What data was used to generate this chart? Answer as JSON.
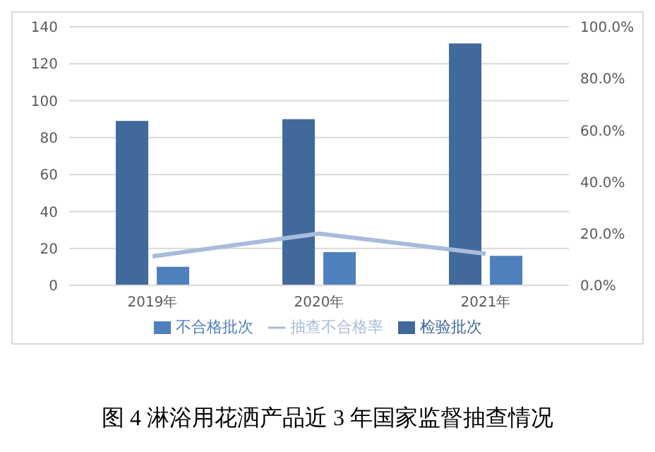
{
  "chart_data": {
    "type": "bar",
    "title": "图 4  淋浴用花洒产品近 3 年国家监督抽查情况",
    "categories": [
      "2019年",
      "2020年",
      "2021年"
    ],
    "series": [
      {
        "name": "检验批次",
        "color": "#41699b",
        "values": [
          89,
          90,
          131
        ]
      },
      {
        "name": "不合格批次",
        "color": "#4e80bd",
        "values": [
          10,
          18,
          16
        ]
      },
      {
        "name": "抽查不合格率",
        "type": "line",
        "axis": "y2",
        "color": "#a9bbdb",
        "values": [
          11.2,
          20.0,
          12.2
        ]
      }
    ],
    "ylim": [
      0,
      140
    ],
    "yticks": [
      0,
      20,
      40,
      60,
      80,
      100,
      120,
      140
    ],
    "y2lim": [
      0,
      100
    ],
    "y2ticks": [
      {
        "value": 0,
        "label": "0.0%"
      },
      {
        "value": 20,
        "label": "20.0%"
      },
      {
        "value": 40,
        "label": "40.0%"
      },
      {
        "value": 60,
        "label": "60.0%"
      },
      {
        "value": 80,
        "label": "80.0%"
      },
      {
        "value": 100,
        "label": "100.0%"
      }
    ],
    "grid": "y",
    "legend": "bottom",
    "marker": "none",
    "line_style": "solid"
  }
}
